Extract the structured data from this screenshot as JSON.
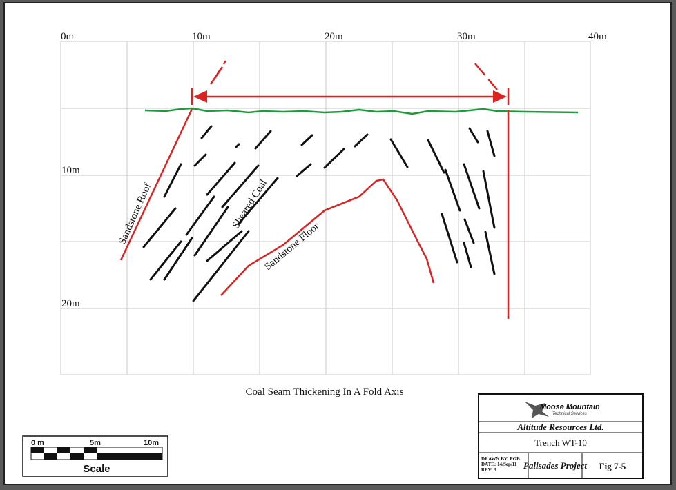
{
  "diagram": {
    "x_labels": [
      "0m",
      "10m",
      "20m",
      "30m",
      "40m"
    ],
    "y_labels": [
      "10m",
      "20m"
    ],
    "annotations": {
      "roof": "Sandstone Roof",
      "coal": "Sheared Coal",
      "floor": "Sandstone Floor"
    },
    "caption": "Coal Seam Thickening In A Fold Axis",
    "title_block": {
      "logo": "Moose Mountain",
      "logo_sub": "Technical Services",
      "company": "Altitude Resources Ltd.",
      "trench": "Trench WT-10",
      "drawn_by": "DRAWN BY: PGB",
      "date": "DATE: 14/Sep/11",
      "rev": "REV: 3",
      "project": "Palisades Project",
      "figure": "Fig 7-5"
    },
    "scale": {
      "ticks": [
        "0 m",
        "5m",
        "10m"
      ],
      "label": "Scale"
    }
  }
}
